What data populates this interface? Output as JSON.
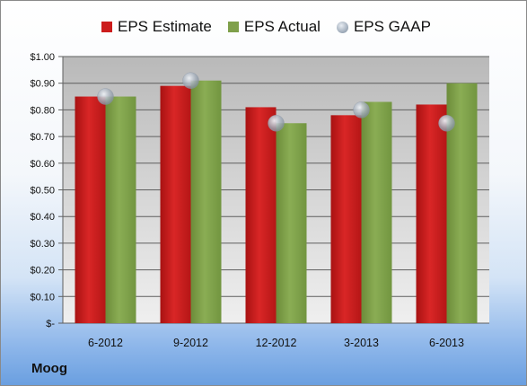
{
  "company": "Moog",
  "colors": {
    "estimate": "#cc1c1c",
    "actual": "#7fa04a",
    "gaap": "#9aa7b6"
  },
  "chart_data": {
    "type": "bar",
    "categories": [
      "6-2012",
      "9-2012",
      "12-2012",
      "3-2013",
      "6-2013"
    ],
    "series": [
      {
        "name": "EPS Estimate",
        "kind": "bar",
        "values": [
          0.85,
          0.89,
          0.81,
          0.78,
          0.82
        ]
      },
      {
        "name": "EPS Actual",
        "kind": "bar",
        "values": [
          0.85,
          0.91,
          0.75,
          0.83,
          0.9
        ]
      },
      {
        "name": "EPS GAAP",
        "kind": "marker",
        "values": [
          0.85,
          0.91,
          0.75,
          0.8,
          0.75
        ]
      }
    ],
    "ylim": [
      0,
      1.0
    ],
    "yticks": [
      0,
      0.1,
      0.2,
      0.3,
      0.4,
      0.5,
      0.6,
      0.7,
      0.8,
      0.9,
      1.0
    ],
    "ytick_labels": [
      "$-",
      "$0.10",
      "$0.20",
      "$0.30",
      "$0.40",
      "$0.50",
      "$0.60",
      "$0.70",
      "$0.80",
      "$0.90",
      "$1.00"
    ],
    "legend_position": "top",
    "grid": true
  }
}
